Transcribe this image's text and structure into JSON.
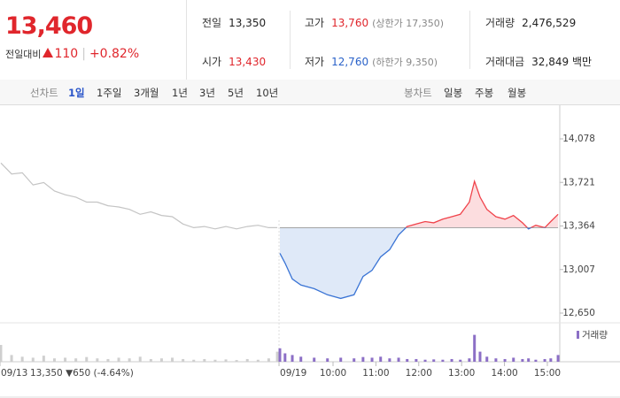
{
  "header": {
    "price": "13,460",
    "change_label": "전일대비",
    "change": "110",
    "change_pct": "+0.82%",
    "stats": [
      {
        "label": "전일",
        "value": "13,350"
      },
      {
        "label": "고가",
        "value": "13,760",
        "note": "(상한가 17,350)"
      },
      {
        "label": "거래량",
        "value": "2,476,529"
      },
      {
        "label": "시가",
        "value": "13,430"
      },
      {
        "label": "저가",
        "value": "12,760",
        "note": "(하한가 9,350)"
      },
      {
        "label": "거래대금",
        "value": "32,849 백만"
      }
    ]
  },
  "period_tabs": {
    "label": "선차트",
    "items": [
      "1일",
      "1주일",
      "3개월",
      "1년",
      "3년",
      "5년",
      "10년"
    ],
    "active": 0
  },
  "candle_tabs": {
    "label": "봉차트",
    "items": [
      "일봉",
      "주봉",
      "월봉"
    ]
  },
  "chart_data": {
    "type": "line",
    "xlim": [
      2.23,
      15.29
    ],
    "ylim": [
      12650,
      14078
    ],
    "yticks": [
      {
        "value": 12650,
        "label": "12,650"
      },
      {
        "value": 13007,
        "label": "13,007"
      },
      {
        "value": 13364,
        "label": "13,364"
      },
      {
        "value": 13721,
        "label": "13,721"
      },
      {
        "value": 14078,
        "label": "14,078"
      }
    ],
    "xticks": [
      {
        "value": 2.23,
        "label": "09/13"
      },
      {
        "value": 8.74,
        "label": "09/19"
      },
      {
        "value": 10,
        "label": "10:00"
      },
      {
        "value": 11,
        "label": "11:00"
      },
      {
        "value": 12,
        "label": "12:00"
      },
      {
        "value": 13,
        "label": "13:00"
      },
      {
        "value": 14,
        "label": "14:00"
      },
      {
        "value": 15,
        "label": "15:00"
      }
    ],
    "baseline": 13350,
    "annotation": "13,350 ▼650 (-4.64%)",
    "annotation_color": "#2a62c9",
    "volume_label": "거래량",
    "volume_ylim": [
      0,
      100
    ],
    "series": [
      {
        "color": "#c4c4c4",
        "volume_color": "#cfcfcf",
        "x": [
          2.25,
          2.5,
          2.75,
          3.0,
          3.25,
          3.5,
          3.75,
          4.0,
          4.25,
          4.5,
          4.75,
          5.0,
          5.25,
          5.5,
          5.75,
          6.0,
          6.25,
          6.5,
          6.75,
          7.0,
          7.25,
          7.5,
          7.75,
          8.0,
          8.25,
          8.5,
          8.7
        ],
        "values": [
          13880,
          13790,
          13800,
          13700,
          13720,
          13650,
          13620,
          13600,
          13560,
          13560,
          13530,
          13520,
          13500,
          13460,
          13480,
          13450,
          13440,
          13380,
          13350,
          13360,
          13340,
          13360,
          13340,
          13360,
          13370,
          13350,
          13350
        ],
        "volume": [
          50,
          20,
          15,
          12,
          18,
          10,
          12,
          10,
          14,
          10,
          8,
          12,
          10,
          15,
          8,
          10,
          12,
          8,
          6,
          8,
          6,
          7,
          5,
          8,
          6,
          10,
          30
        ]
      },
      {
        "color": "#f0434b",
        "down_color": "#3a74d5",
        "volume_color": "#8c6fc6",
        "x": [
          8.76,
          8.88,
          9.05,
          9.25,
          9.56,
          9.87,
          10.18,
          10.49,
          10.7,
          10.91,
          11.11,
          11.32,
          11.53,
          11.73,
          11.94,
          12.15,
          12.35,
          12.56,
          12.77,
          12.97,
          13.18,
          13.3,
          13.43,
          13.59,
          13.8,
          14.01,
          14.21,
          14.42,
          14.56,
          14.73,
          14.94,
          15.08,
          15.25
        ],
        "values": [
          13140,
          13060,
          12930,
          12880,
          12850,
          12800,
          12770,
          12800,
          12950,
          13000,
          13110,
          13170,
          13290,
          13360,
          13380,
          13400,
          13390,
          13420,
          13440,
          13460,
          13560,
          13730,
          13600,
          13500,
          13440,
          13420,
          13450,
          13390,
          13340,
          13370,
          13350,
          13400,
          13460
        ],
        "volume": [
          40,
          25,
          20,
          15,
          12,
          10,
          12,
          10,
          14,
          12,
          15,
          10,
          12,
          8,
          8,
          6,
          7,
          6,
          8,
          6,
          10,
          80,
          30,
          15,
          10,
          8,
          12,
          8,
          10,
          6,
          8,
          10,
          20
        ]
      }
    ]
  }
}
